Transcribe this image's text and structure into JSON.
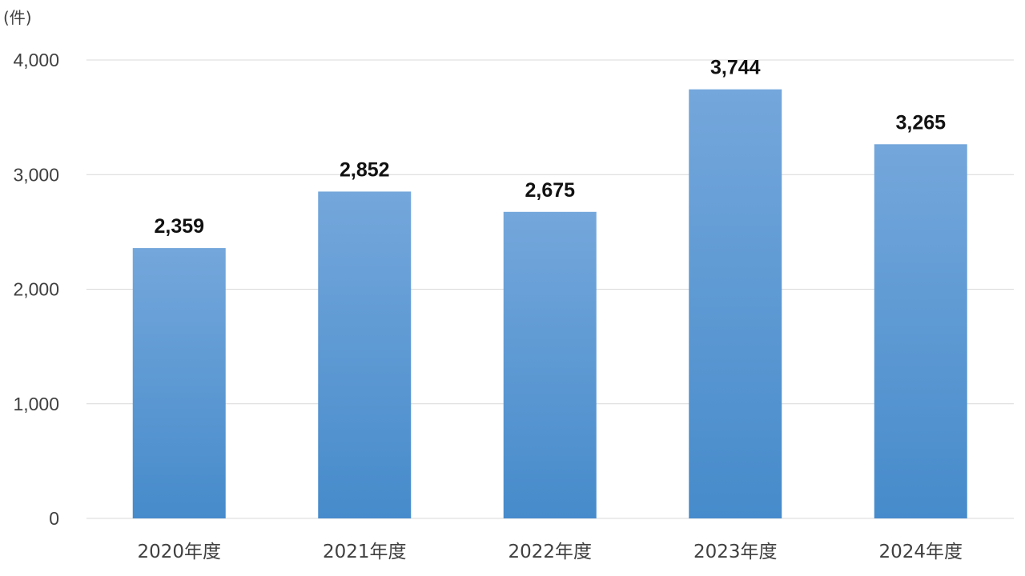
{
  "chart_data": {
    "type": "bar",
    "unit_label": "(件)",
    "categories": [
      "2020年度",
      "2021年度",
      "2022年度",
      "2023年度",
      "2024年度"
    ],
    "values": [
      2359,
      2852,
      2675,
      3744,
      3265
    ],
    "value_labels": [
      "2,359",
      "2,852",
      "2,675",
      "3,744",
      "3,265"
    ],
    "ylim": [
      0,
      4000
    ],
    "yticks": [
      0,
      1000,
      2000,
      3000,
      4000
    ],
    "ytick_labels": [
      "0",
      "1,000",
      "2,000",
      "3,000",
      "4,000"
    ],
    "grid": true,
    "legend": "none",
    "colors": {
      "bar_top": "#74a7db",
      "bar_bottom": "#468bcb",
      "grid": "#d9d9d9",
      "axis": "#d9d9d9"
    }
  }
}
